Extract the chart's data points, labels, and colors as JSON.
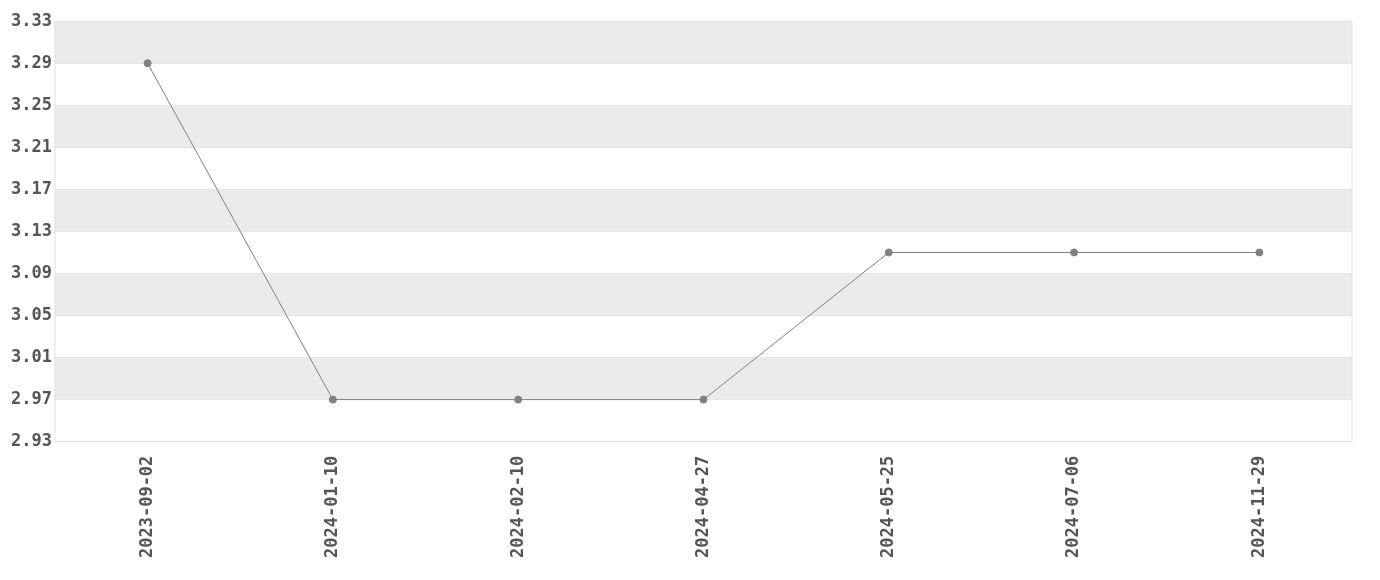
{
  "chart_data": {
    "type": "line",
    "categories": [
      "2023-09-02",
      "2024-01-10",
      "2024-02-10",
      "2024-04-27",
      "2024-05-25",
      "2024-07-06",
      "2024-11-29"
    ],
    "series": [
      {
        "color": "#808080",
        "values": [
          3.29,
          2.97,
          2.97,
          2.97,
          3.11,
          3.11,
          3.11
        ]
      }
    ],
    "ylim": [
      2.93,
      3.33
    ],
    "yticks": [
      2.93,
      2.97,
      3.01,
      3.05,
      3.09,
      3.13,
      3.17,
      3.21,
      3.25,
      3.29,
      3.33
    ],
    "grid": "y",
    "legend": false,
    "marker": "circle",
    "line_style": "solid"
  }
}
